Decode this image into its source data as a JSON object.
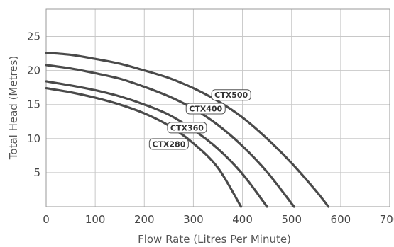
{
  "chart_data": {
    "type": "line",
    "xlabel": "Flow Rate (Litres Per Minute)",
    "ylabel": "Total Head (Metres)",
    "xlim": [
      0,
      700
    ],
    "ylim": [
      0,
      29
    ],
    "x_ticks": [
      0,
      100,
      200,
      300,
      400,
      500,
      600,
      700
    ],
    "y_ticks": [
      5,
      10,
      15,
      20,
      25
    ],
    "grid": true,
    "series": [
      {
        "name": "CTX500",
        "x": [
          0,
          50,
          100,
          150,
          200,
          250,
          300,
          350,
          400,
          450,
          500,
          550,
          575
        ],
        "y": [
          22.6,
          22.3,
          21.7,
          21.0,
          20.0,
          18.9,
          17.4,
          15.5,
          13.1,
          10.0,
          6.4,
          2.3,
          0
        ]
      },
      {
        "name": "CTX400",
        "x": [
          0,
          50,
          100,
          150,
          200,
          250,
          300,
          350,
          400,
          450,
          505
        ],
        "y": [
          20.8,
          20.3,
          19.6,
          18.8,
          17.6,
          16.2,
          14.4,
          12.0,
          8.9,
          5.1,
          0
        ]
      },
      {
        "name": "CTX360",
        "x": [
          0,
          50,
          100,
          150,
          200,
          250,
          300,
          350,
          400,
          450
        ],
        "y": [
          18.4,
          17.8,
          17.1,
          16.2,
          15.0,
          13.5,
          11.3,
          8.5,
          4.8,
          0
        ]
      },
      {
        "name": "CTX280",
        "x": [
          0,
          50,
          100,
          150,
          200,
          250,
          300,
          350,
          397
        ],
        "y": [
          17.4,
          16.8,
          16.0,
          15.0,
          13.7,
          11.9,
          9.3,
          5.7,
          0
        ]
      }
    ],
    "labels": [
      {
        "series": "CTX500",
        "x": 377,
        "y": 16.4
      },
      {
        "series": "CTX400",
        "x": 325,
        "y": 14.4
      },
      {
        "series": "CTX360",
        "x": 287,
        "y": 11.6
      },
      {
        "series": "CTX280",
        "x": 250,
        "y": 9.2
      }
    ],
    "colors": {
      "line": "#4a4a4a",
      "grid": "#c8c8c8",
      "text": "#444444"
    }
  }
}
